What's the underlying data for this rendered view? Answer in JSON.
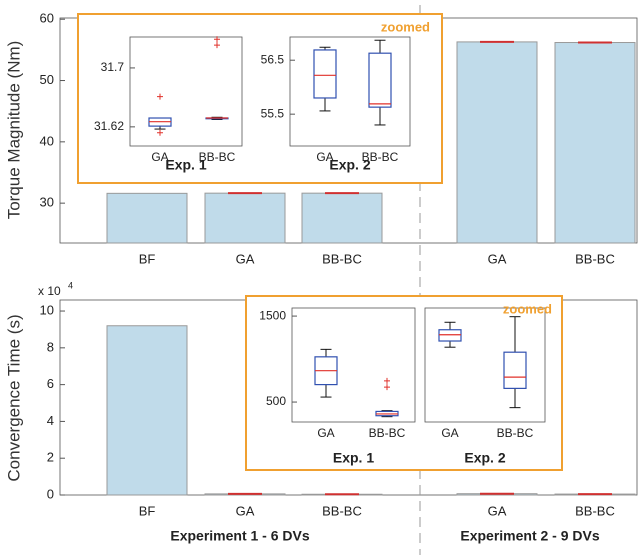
{
  "chart_data": [
    {
      "type": "bar",
      "ylabel": "Torque Magnitude (Nm)",
      "categories": [
        "BF",
        "GA",
        "BB-BC",
        "GA",
        "BB-BC"
      ],
      "values": [
        31.6,
        31.63,
        31.63,
        56.3,
        56.2
      ],
      "color": "#c0dbea",
      "edge_color": "#999999",
      "top_color": "#d03030",
      "ylim": [
        23.5,
        60.2
      ],
      "yticks": [
        30,
        40,
        50,
        60
      ]
    },
    {
      "type": "box",
      "xlabel": "Exp. 1",
      "categories": [
        "GA",
        "BB-BC"
      ],
      "ylim": [
        31.594,
        31.742
      ],
      "yticks": [
        31.62,
        31.7
      ],
      "box_color": "#3050b0",
      "median_color": "#e0302a",
      "boxes": [
        {
          "whislo": 31.617,
          "q1": 31.621,
          "med": 31.627,
          "q3": 31.632,
          "whishi": 31.632,
          "fliers": [
            31.661,
            31.612
          ]
        },
        {
          "whislo": 31.63,
          "q1": 31.631,
          "med": 31.632,
          "q3": 31.632,
          "whishi": 31.633,
          "fliers": [
            31.731,
            31.739
          ]
        }
      ]
    },
    {
      "type": "box",
      "xlabel": "Exp. 2",
      "categories": [
        "GA",
        "BB-BC"
      ],
      "annotation": "zoomed",
      "ylim": [
        54.91,
        56.93
      ],
      "yticks": [
        55.5,
        56.5
      ],
      "box_color": "#3050b0",
      "median_color": "#e0302a",
      "boxes": [
        {
          "whislo": 55.56,
          "q1": 55.8,
          "med": 56.22,
          "q3": 56.69,
          "whishi": 56.74,
          "fliers": []
        },
        {
          "whislo": 55.3,
          "q1": 55.63,
          "med": 55.69,
          "q3": 56.63,
          "whishi": 56.87,
          "fliers": []
        }
      ]
    },
    {
      "type": "bar",
      "ylabel": "Convergence Time (s)",
      "y_multiplier": "x 10",
      "y_multiplier_exponent": "4",
      "categories": [
        "BF",
        "GA",
        "BB-BC",
        "GA",
        "BB-BC"
      ],
      "values": [
        9.2,
        0.06,
        0.04,
        0.07,
        0.05
      ],
      "group_labels": [
        "Experiment 1 - 6 DVs",
        "Experiment 2 - 9 DVs"
      ],
      "color": "#c0dbea",
      "edge_color": "#999999",
      "top_color": "#d03030",
      "ylim": [
        0,
        10.6
      ],
      "yticks": [
        0,
        2,
        4,
        6,
        8,
        10
      ]
    },
    {
      "type": "box",
      "xlabel": "Exp. 1",
      "categories": [
        "GA",
        "BB-BC"
      ],
      "ylim": [
        268,
        1594
      ],
      "yticks": [
        500,
        1500
      ],
      "box_color": "#3050b0",
      "median_color": "#e0302a",
      "boxes": [
        {
          "whislo": 558,
          "q1": 703,
          "med": 865,
          "q3": 1026,
          "whishi": 1113,
          "fliers": []
        },
        {
          "whislo": 330,
          "q1": 341,
          "med": 362,
          "q3": 391,
          "whishi": 400,
          "fliers": [
            674,
            747
          ]
        }
      ]
    },
    {
      "type": "box",
      "xlabel": "Exp. 2",
      "categories": [
        "GA",
        "BB-BC"
      ],
      "annotation": "zoomed",
      "ylim": [
        268,
        1594
      ],
      "box_color": "#3050b0",
      "median_color": "#e0302a",
      "boxes": [
        {
          "whislo": 1138,
          "q1": 1210,
          "med": 1283,
          "q3": 1341,
          "whishi": 1428,
          "fliers": []
        },
        {
          "whislo": 435,
          "q1": 659,
          "med": 790,
          "q3": 1080,
          "whishi": 1493,
          "fliers": []
        }
      ]
    }
  ]
}
